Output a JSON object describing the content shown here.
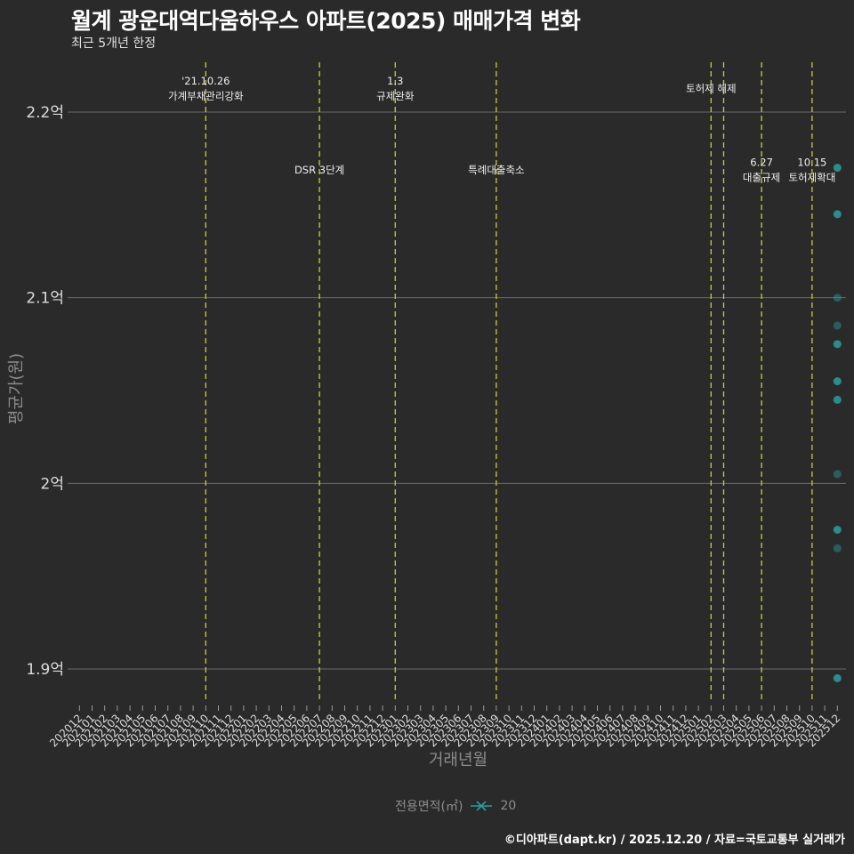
{
  "header": {
    "title": "월계 광운대역다움하우스 아파트(2025) 매매가격 변화",
    "subtitle": "최근 5개년 한정"
  },
  "chart_data": {
    "type": "scatter",
    "title": "월계 광운대역다움하우스 아파트(2025) 매매가격 변화",
    "subtitle": "최근 5개년 한정",
    "xlabel": "거래년월",
    "ylabel": "평균가(원)",
    "y_unit": "만원",
    "ylim": [
      18820,
      22270
    ],
    "grid": true,
    "legend_position": "bottom",
    "categories": [
      "202012",
      "202101",
      "202102",
      "202103",
      "202104",
      "202105",
      "202106",
      "202107",
      "202108",
      "202109",
      "202110",
      "202111",
      "202112",
      "202201",
      "202202",
      "202203",
      "202204",
      "202205",
      "202206",
      "202207",
      "202208",
      "202209",
      "202210",
      "202211",
      "202212",
      "202301",
      "202302",
      "202303",
      "202304",
      "202305",
      "202306",
      "202307",
      "202308",
      "202309",
      "202310",
      "202311",
      "202312",
      "202401",
      "202402",
      "202403",
      "202404",
      "202405",
      "202406",
      "202407",
      "202408",
      "202409",
      "202410",
      "202411",
      "202412",
      "202501",
      "202502",
      "202503",
      "202504",
      "202505",
      "202506",
      "202507",
      "202508",
      "202509",
      "202510",
      "202511",
      "202512"
    ],
    "y_ticks": [
      {
        "value": 22000,
        "label": "2.2억"
      },
      {
        "value": 21000,
        "label": "2.1억"
      },
      {
        "value": 20000,
        "label": "2억"
      },
      {
        "value": 19000,
        "label": "1.9억"
      }
    ],
    "series": [
      {
        "name": "20",
        "color": "#2a9d9d",
        "points": [
          {
            "x": "202512",
            "y": 21700,
            "alpha": 0.85
          },
          {
            "x": "202512",
            "y": 21450,
            "alpha": 0.85
          },
          {
            "x": "202512",
            "y": 21000,
            "alpha": 0.45
          },
          {
            "x": "202512",
            "y": 20850,
            "alpha": 0.45
          },
          {
            "x": "202512",
            "y": 20750,
            "alpha": 0.85
          },
          {
            "x": "202512",
            "y": 20550,
            "alpha": 0.85
          },
          {
            "x": "202512",
            "y": 20450,
            "alpha": 0.85
          },
          {
            "x": "202512",
            "y": 20050,
            "alpha": 0.45
          },
          {
            "x": "202512",
            "y": 19750,
            "alpha": 0.85
          },
          {
            "x": "202512",
            "y": 19650,
            "alpha": 0.45
          },
          {
            "x": "202512",
            "y": 18950,
            "alpha": 0.85
          }
        ]
      }
    ],
    "event_line_color": "#c9cf2a",
    "events": [
      {
        "x": "202110",
        "label": [
          "'21.10.26",
          "가계부채관리강화"
        ],
        "label_y": 22128
      },
      {
        "x": "202207",
        "label": [
          "DSR 3단계"
        ],
        "label_y": 21688
      },
      {
        "x": "202301",
        "label": [
          "1.3",
          "규제완화"
        ],
        "label_y": 22128
      },
      {
        "x": "202309",
        "label": [
          "특례대출축소"
        ],
        "label_y": 21688
      },
      {
        "x": "202502",
        "label": [
          "토허제 해제"
        ],
        "label_y": 22128
      },
      {
        "x": "202503",
        "label": [],
        "label_y": null
      },
      {
        "x": "202506",
        "label": [
          "6.27",
          "대출규제"
        ],
        "label_y": 21688
      },
      {
        "x": "202510",
        "label": [
          "10.15",
          "토허제확대"
        ],
        "label_y": 21688
      }
    ],
    "legend": {
      "title": "전용면적(㎡)",
      "items": [
        {
          "label": "20",
          "color": "#2a9d9d"
        }
      ]
    }
  },
  "footer": {
    "caption": "©디아파트(dapt.kr) / 2025.12.20 / 자료=국토교통부 실거래가"
  }
}
